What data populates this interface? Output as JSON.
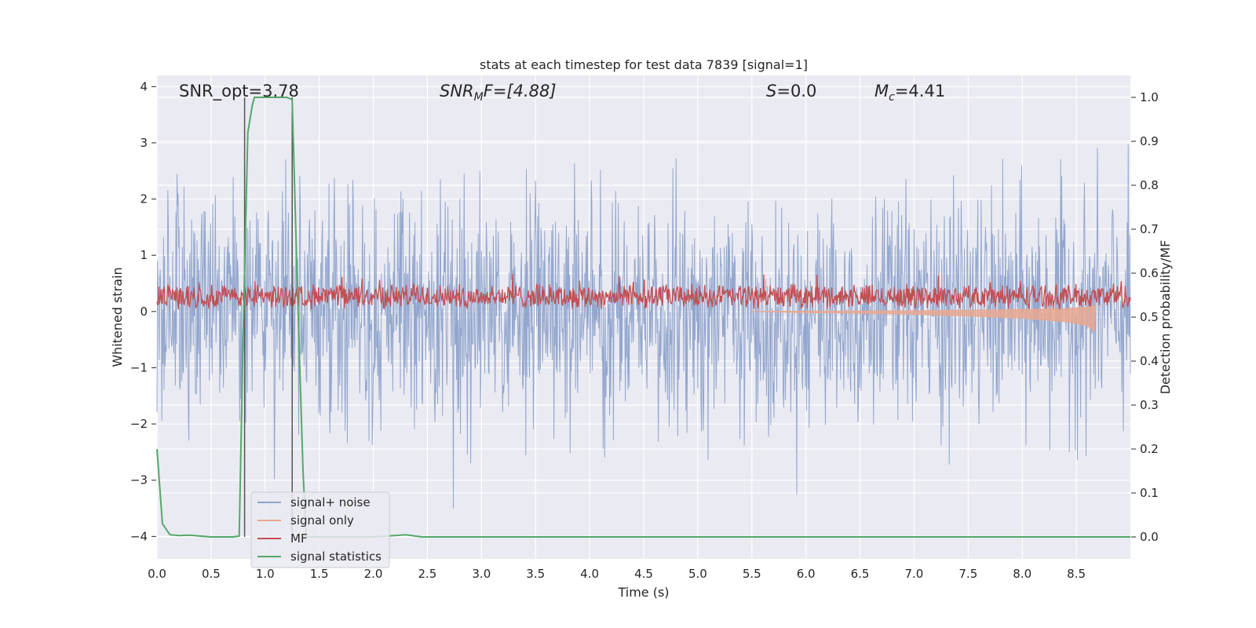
{
  "chart_data": {
    "type": "line",
    "title": "stats at each timestep for test data 7839 [signal=1]",
    "xlabel": "Time (s)",
    "ylabel": "Whitened strain",
    "y2label": "Detection probability/MF",
    "xlim": [
      0.0,
      9.0
    ],
    "ylim": [
      -4.4,
      4.2
    ],
    "y2lim": [
      -0.05,
      1.05
    ],
    "x_ticks": [
      "0.0",
      "0.5",
      "1.0",
      "1.5",
      "2.0",
      "2.5",
      "3.0",
      "3.5",
      "4.0",
      "4.5",
      "5.0",
      "5.5",
      "6.0",
      "6.5",
      "7.0",
      "7.5",
      "8.0",
      "8.5"
    ],
    "y_ticks": [
      "4",
      "3",
      "2",
      "1",
      "0",
      "−1",
      "−2",
      "−3",
      "−4"
    ],
    "y2_ticks": [
      "1.0",
      "0.9",
      "0.8",
      "0.7",
      "0.6",
      "0.5",
      "0.4",
      "0.3",
      "0.2",
      "0.1",
      "0.0"
    ],
    "grid": true,
    "legend_position": "lower-left",
    "annotations": {
      "snr_opt": "SNR_opt=3.78",
      "snr_mf_sym": "SNR",
      "snr_mf_sub": "M",
      "snr_mf_rest": "F=[4.88]",
      "s_sym": "S",
      "s_rest": "=0.0",
      "mc_sym": "M",
      "mc_sub": "c",
      "mc_rest": "=4.41"
    },
    "vertical_lines_x": [
      0.81,
      1.25
    ],
    "series": [
      {
        "name": "signal+ noise",
        "color": "#8ea3cb",
        "axis": "left",
        "description_values": {
          "sigma": 1.0,
          "x_range": [
            0.0,
            9.0
          ]
        }
      },
      {
        "name": "signal only",
        "color": "#e9a88f",
        "axis": "left",
        "x": [
          5.5,
          6.0,
          6.5,
          7.0,
          7.5,
          8.0,
          8.4,
          8.6,
          8.67
        ],
        "values": [
          0.0,
          0.02,
          0.03,
          0.05,
          0.08,
          0.12,
          0.18,
          0.25,
          0.35
        ]
      },
      {
        "name": "MF",
        "color": "#c44e52",
        "axis": "left",
        "description_values": {
          "mean": 0.27,
          "spread": 0.2
        }
      },
      {
        "name": "signal statistics",
        "color": "#55a868",
        "axis": "right",
        "x": [
          0.0,
          0.05,
          0.12,
          0.2,
          0.3,
          0.5,
          0.7,
          0.76,
          0.8,
          0.84,
          0.88,
          0.9,
          1.0,
          1.1,
          1.2,
          1.25,
          1.3,
          1.35,
          1.38,
          1.5,
          2.0,
          2.2,
          2.3,
          2.45,
          3.0,
          5.0,
          7.0,
          9.0
        ],
        "values": [
          0.2,
          0.03,
          0.005,
          0.003,
          0.004,
          0.0,
          0.0,
          0.002,
          0.5,
          0.92,
          0.98,
          1.0,
          1.0,
          1.0,
          1.0,
          0.995,
          0.55,
          0.15,
          0.0,
          0.0,
          0.0,
          0.003,
          0.005,
          0.0,
          0.0,
          0.0,
          0.0,
          0.0
        ]
      }
    ]
  }
}
